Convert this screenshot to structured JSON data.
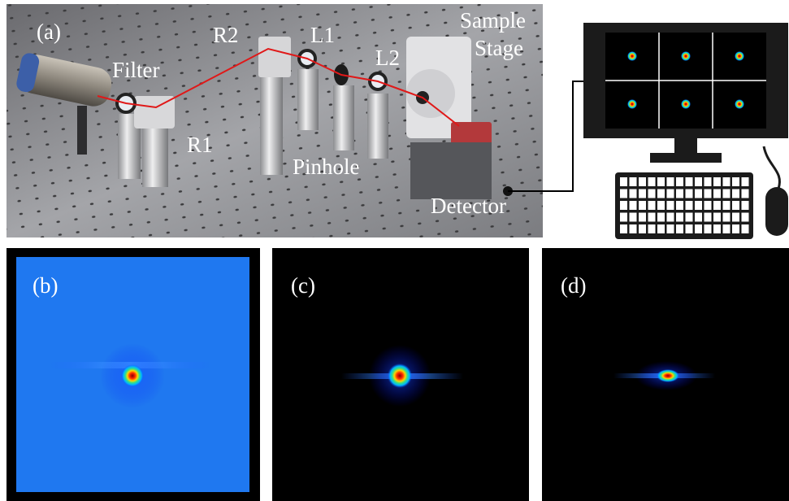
{
  "panels": [
    {
      "label": "(a)",
      "annotations": [
        "Filter",
        "R1",
        "R2",
        "L1",
        "L2",
        "Pinhole",
        "Sample",
        "Stage",
        "Detector"
      ]
    },
    {
      "label": "(b)"
    },
    {
      "label": "(c)"
    },
    {
      "label": "(d)"
    }
  ]
}
